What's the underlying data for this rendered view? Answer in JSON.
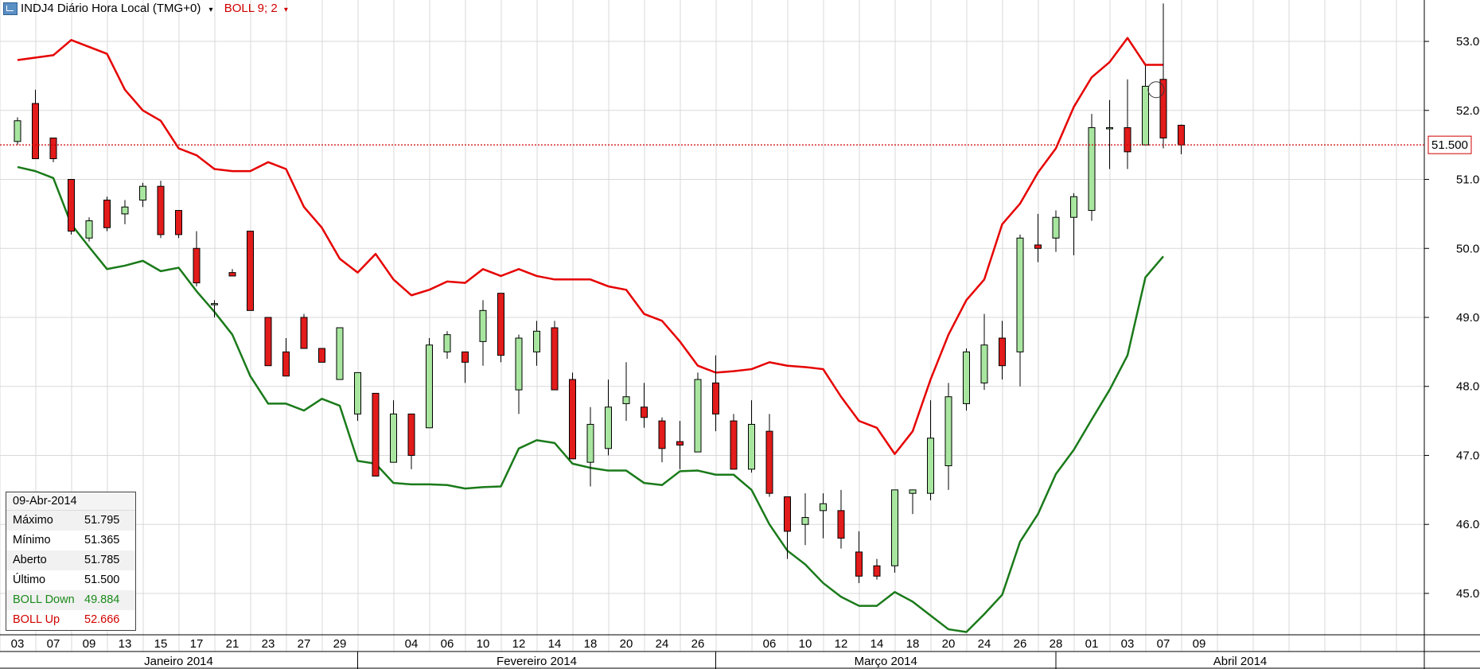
{
  "header": {
    "title": "INDJ4 Diário Hora Local (TMG+0)",
    "indicator": "BOLL 9; 2",
    "caret": "▾"
  },
  "price_marker": "51.500",
  "info_box": {
    "date": "09-Abr-2014",
    "rows": [
      {
        "label": "Máximo",
        "value": "51.795",
        "style": ""
      },
      {
        "label": "Mínimo",
        "value": "51.365",
        "style": ""
      },
      {
        "label": "Aberto",
        "value": "51.785",
        "style": ""
      },
      {
        "label": "Último",
        "value": "51.500",
        "style": ""
      },
      {
        "label": "BOLL Down",
        "value": "49.884",
        "style": "green"
      },
      {
        "label": "BOLL Up",
        "value": "52.666",
        "style": "red"
      }
    ]
  },
  "colors": {
    "up": "#a8e6a0",
    "down": "#e21b1b",
    "boll_up": "#e60000",
    "boll_down": "#1a7a1a",
    "grid": "#d9d9d9"
  },
  "chart_data": {
    "type": "candlestick",
    "y_range": [
      44.4,
      53.6
    ],
    "y_ticks": [
      "45.000",
      "46.000",
      "47.000",
      "48.000",
      "49.000",
      "50.000",
      "51.000",
      "52.000",
      "53.000"
    ],
    "last_price": 51.5,
    "x_labels": [
      "03",
      "07",
      "09",
      "13",
      "15",
      "17",
      "21",
      "23",
      "27",
      "29",
      "",
      "04",
      "06",
      "10",
      "12",
      "14",
      "18",
      "20",
      "24",
      "26",
      "",
      "06",
      "10",
      "12",
      "14",
      "18",
      "20",
      "24",
      "26",
      "28",
      "01",
      "03",
      "07",
      "09"
    ],
    "months": [
      {
        "name": "Janeiro 2014",
        "from": 0,
        "to": 10
      },
      {
        "name": "Fevereiro 2014",
        "from": 10,
        "to": 20
      },
      {
        "name": "Março 2014",
        "from": 20,
        "to": 29.5
      },
      {
        "name": "Abril 2014",
        "from": 29.5,
        "to": 41
      }
    ],
    "candles": [
      {
        "i": 0,
        "o": 51.55,
        "h": 51.9,
        "l": 51.5,
        "c": 51.85
      },
      {
        "i": 0.5,
        "o": 52.1,
        "h": 52.3,
        "l": 51.3,
        "c": 51.3
      },
      {
        "i": 1,
        "o": 51.6,
        "h": 51.6,
        "l": 51.25,
        "c": 51.3
      },
      {
        "i": 1.5,
        "o": 51.0,
        "h": 51.0,
        "l": 50.2,
        "c": 50.25
      },
      {
        "i": 2,
        "o": 50.15,
        "h": 50.45,
        "l": 50.1,
        "c": 50.4
      },
      {
        "i": 2.5,
        "o": 50.7,
        "h": 50.75,
        "l": 50.25,
        "c": 50.3
      },
      {
        "i": 3,
        "o": 50.5,
        "h": 50.7,
        "l": 50.35,
        "c": 50.6
      },
      {
        "i": 3.5,
        "o": 50.7,
        "h": 50.95,
        "l": 50.6,
        "c": 50.9
      },
      {
        "i": 4,
        "o": 50.9,
        "h": 50.98,
        "l": 50.15,
        "c": 50.2
      },
      {
        "i": 4.5,
        "o": 50.55,
        "h": 50.55,
        "l": 50.15,
        "c": 50.2
      },
      {
        "i": 5,
        "o": 50.0,
        "h": 50.25,
        "l": 49.45,
        "c": 49.5
      },
      {
        "i": 5.5,
        "o": 49.2,
        "h": 49.25,
        "l": 49.0,
        "c": 49.2
      },
      {
        "i": 6,
        "o": 49.65,
        "h": 49.7,
        "l": 49.6,
        "c": 49.6
      },
      {
        "i": 6.5,
        "o": 50.25,
        "h": 50.25,
        "l": 49.1,
        "c": 49.1
      },
      {
        "i": 7,
        "o": 49.0,
        "h": 49.0,
        "l": 48.3,
        "c": 48.3
      },
      {
        "i": 7.5,
        "o": 48.5,
        "h": 48.7,
        "l": 48.15,
        "c": 48.15
      },
      {
        "i": 8,
        "o": 49.0,
        "h": 49.05,
        "l": 48.55,
        "c": 48.55
      },
      {
        "i": 8.5,
        "o": 48.55,
        "h": 48.55,
        "l": 48.35,
        "c": 48.35
      },
      {
        "i": 9,
        "o": 48.1,
        "h": 48.85,
        "l": 48.1,
        "c": 48.85
      },
      {
        "i": 9.5,
        "o": 47.6,
        "h": 48.2,
        "l": 47.5,
        "c": 48.2
      },
      {
        "i": 10,
        "o": 47.9,
        "h": 47.9,
        "l": 46.7,
        "c": 46.7
      },
      {
        "i": 10.5,
        "o": 46.9,
        "h": 47.8,
        "l": 46.9,
        "c": 47.6
      },
      {
        "i": 11,
        "o": 47.6,
        "h": 47.6,
        "l": 46.8,
        "c": 47.0
      },
      {
        "i": 11.5,
        "o": 47.4,
        "h": 48.7,
        "l": 47.4,
        "c": 48.6
      },
      {
        "i": 12,
        "o": 48.5,
        "h": 48.8,
        "l": 48.4,
        "c": 48.75
      },
      {
        "i": 12.5,
        "o": 48.5,
        "h": 48.5,
        "l": 48.05,
        "c": 48.35
      },
      {
        "i": 13,
        "o": 48.65,
        "h": 49.25,
        "l": 48.3,
        "c": 49.1
      },
      {
        "i": 13.5,
        "o": 49.35,
        "h": 49.35,
        "l": 48.35,
        "c": 48.45
      },
      {
        "i": 14,
        "o": 47.95,
        "h": 48.75,
        "l": 47.6,
        "c": 48.7
      },
      {
        "i": 14.5,
        "o": 48.5,
        "h": 48.95,
        "l": 48.3,
        "c": 48.8
      },
      {
        "i": 15,
        "o": 48.85,
        "h": 48.95,
        "l": 47.95,
        "c": 47.95
      },
      {
        "i": 15.5,
        "o": 48.1,
        "h": 48.2,
        "l": 46.95,
        "c": 46.95
      },
      {
        "i": 16,
        "o": 46.9,
        "h": 47.7,
        "l": 46.55,
        "c": 47.45
      },
      {
        "i": 16.5,
        "o": 47.1,
        "h": 48.1,
        "l": 47.0,
        "c": 47.7
      },
      {
        "i": 17,
        "o": 47.75,
        "h": 48.35,
        "l": 47.5,
        "c": 47.85
      },
      {
        "i": 17.5,
        "o": 47.7,
        "h": 48.05,
        "l": 47.4,
        "c": 47.55
      },
      {
        "i": 18,
        "o": 47.5,
        "h": 47.55,
        "l": 46.9,
        "c": 47.1
      },
      {
        "i": 18.5,
        "o": 47.2,
        "h": 47.5,
        "l": 46.8,
        "c": 47.15
      },
      {
        "i": 19,
        "o": 47.05,
        "h": 48.2,
        "l": 47.05,
        "c": 48.1
      },
      {
        "i": 19.5,
        "o": 48.05,
        "h": 48.45,
        "l": 47.35,
        "c": 47.6
      },
      {
        "i": 20,
        "o": 47.5,
        "h": 47.6,
        "l": 46.8,
        "c": 46.8
      },
      {
        "i": 20.5,
        "o": 46.8,
        "h": 47.8,
        "l": 46.75,
        "c": 47.45
      },
      {
        "i": 21,
        "o": 47.35,
        "h": 47.6,
        "l": 46.4,
        "c": 46.45
      },
      {
        "i": 21.5,
        "o": 46.4,
        "h": 46.4,
        "l": 45.5,
        "c": 45.9
      },
      {
        "i": 22,
        "o": 46.0,
        "h": 46.45,
        "l": 45.7,
        "c": 46.1
      },
      {
        "i": 22.5,
        "o": 46.2,
        "h": 46.45,
        "l": 45.8,
        "c": 46.3
      },
      {
        "i": 23,
        "o": 46.2,
        "h": 46.5,
        "l": 45.65,
        "c": 45.8
      },
      {
        "i": 23.5,
        "o": 45.6,
        "h": 45.9,
        "l": 45.15,
        "c": 45.25
      },
      {
        "i": 24,
        "o": 45.4,
        "h": 45.5,
        "l": 45.2,
        "c": 45.25
      },
      {
        "i": 24.5,
        "o": 45.4,
        "h": 46.5,
        "l": 45.3,
        "c": 46.5
      },
      {
        "i": 25,
        "o": 46.45,
        "h": 46.5,
        "l": 46.15,
        "c": 46.5
      },
      {
        "i": 25.5,
        "o": 46.45,
        "h": 47.8,
        "l": 46.35,
        "c": 47.25
      },
      {
        "i": 26,
        "o": 46.85,
        "h": 48.05,
        "l": 46.5,
        "c": 47.85
      },
      {
        "i": 26.5,
        "o": 47.75,
        "h": 48.55,
        "l": 47.65,
        "c": 48.5
      },
      {
        "i": 27,
        "o": 48.05,
        "h": 49.05,
        "l": 47.95,
        "c": 48.6
      },
      {
        "i": 27.5,
        "o": 48.7,
        "h": 48.95,
        "l": 48.1,
        "c": 48.3
      },
      {
        "i": 28,
        "o": 48.5,
        "h": 50.2,
        "l": 48.0,
        "c": 50.15
      },
      {
        "i": 28.5,
        "o": 50.05,
        "h": 50.5,
        "l": 49.8,
        "c": 50.0
      },
      {
        "i": 29,
        "o": 50.15,
        "h": 50.55,
        "l": 49.95,
        "c": 50.45
      },
      {
        "i": 29.5,
        "o": 50.45,
        "h": 50.8,
        "l": 49.9,
        "c": 50.75
      },
      {
        "i": 30,
        "o": 50.55,
        "h": 51.95,
        "l": 50.4,
        "c": 51.75
      },
      {
        "i": 30.5,
        "o": 51.75,
        "h": 52.15,
        "l": 51.15,
        "c": 51.75
      },
      {
        "i": 31,
        "o": 51.75,
        "h": 52.45,
        "l": 51.15,
        "c": 51.4
      },
      {
        "i": 31.5,
        "o": 51.5,
        "h": 52.65,
        "l": 51.5,
        "c": 52.35
      },
      {
        "i": 32,
        "o": 52.45,
        "h": 53.55,
        "l": 51.45,
        "c": 51.6
      },
      {
        "i": 32.5,
        "o": 51.785,
        "h": 51.795,
        "l": 51.365,
        "c": 51.5
      }
    ],
    "boll_up": [
      [
        0,
        52.73
      ],
      [
        1,
        52.8
      ],
      [
        1.5,
        53.02
      ],
      [
        2.5,
        52.82
      ],
      [
        3,
        52.3
      ],
      [
        3.5,
        52.0
      ],
      [
        4,
        51.85
      ],
      [
        4.5,
        51.45
      ],
      [
        5,
        51.35
      ],
      [
        5.5,
        51.15
      ],
      [
        6,
        51.12
      ],
      [
        6.5,
        51.12
      ],
      [
        7,
        51.25
      ],
      [
        7.5,
        51.15
      ],
      [
        8,
        50.6
      ],
      [
        8.5,
        50.3
      ],
      [
        9,
        49.85
      ],
      [
        9.5,
        49.65
      ],
      [
        10,
        49.92
      ],
      [
        10.5,
        49.55
      ],
      [
        11,
        49.32
      ],
      [
        11.5,
        49.4
      ],
      [
        12,
        49.52
      ],
      [
        12.5,
        49.5
      ],
      [
        13,
        49.7
      ],
      [
        13.5,
        49.6
      ],
      [
        14,
        49.7
      ],
      [
        14.5,
        49.6
      ],
      [
        15,
        49.55
      ],
      [
        15.5,
        49.55
      ],
      [
        16,
        49.55
      ],
      [
        16.5,
        49.45
      ],
      [
        17,
        49.4
      ],
      [
        17.5,
        49.05
      ],
      [
        18,
        48.95
      ],
      [
        18.5,
        48.65
      ],
      [
        19,
        48.3
      ],
      [
        19.5,
        48.2
      ],
      [
        20,
        48.22
      ],
      [
        20.5,
        48.25
      ],
      [
        21,
        48.35
      ],
      [
        21.5,
        48.3
      ],
      [
        22,
        48.28
      ],
      [
        22.5,
        48.25
      ],
      [
        23,
        47.85
      ],
      [
        23.5,
        47.5
      ],
      [
        24,
        47.4
      ],
      [
        24.5,
        47.02
      ],
      [
        25,
        47.35
      ],
      [
        25.5,
        48.1
      ],
      [
        26,
        48.75
      ],
      [
        26.5,
        49.25
      ],
      [
        27,
        49.55
      ],
      [
        27.5,
        50.35
      ],
      [
        28,
        50.65
      ],
      [
        28.5,
        51.1
      ],
      [
        29,
        51.45
      ],
      [
        29.5,
        52.05
      ],
      [
        30,
        52.48
      ],
      [
        30.5,
        52.7
      ],
      [
        31,
        53.05
      ],
      [
        31.5,
        52.66
      ],
      [
        32,
        52.66
      ]
    ],
    "boll_down": [
      [
        0,
        51.18
      ],
      [
        0.5,
        51.12
      ],
      [
        1,
        51.02
      ],
      [
        1.5,
        50.35
      ],
      [
        2,
        50.02
      ],
      [
        2.5,
        49.7
      ],
      [
        3,
        49.75
      ],
      [
        3.5,
        49.82
      ],
      [
        4,
        49.67
      ],
      [
        4.5,
        49.72
      ],
      [
        5,
        49.38
      ],
      [
        5.5,
        49.08
      ],
      [
        6,
        48.75
      ],
      [
        6.5,
        48.15
      ],
      [
        7,
        47.75
      ],
      [
        7.5,
        47.75
      ],
      [
        8,
        47.65
      ],
      [
        8.5,
        47.82
      ],
      [
        9,
        47.72
      ],
      [
        9.5,
        46.92
      ],
      [
        10,
        46.88
      ],
      [
        10.5,
        46.6
      ],
      [
        11,
        46.58
      ],
      [
        11.5,
        46.58
      ],
      [
        12,
        46.57
      ],
      [
        12.5,
        46.52
      ],
      [
        13,
        46.54
      ],
      [
        13.5,
        46.55
      ],
      [
        14,
        47.1
      ],
      [
        14.5,
        47.22
      ],
      [
        15,
        47.18
      ],
      [
        15.5,
        46.88
      ],
      [
        16,
        46.82
      ],
      [
        16.5,
        46.78
      ],
      [
        17,
        46.78
      ],
      [
        17.5,
        46.6
      ],
      [
        18,
        46.57
      ],
      [
        18.5,
        46.77
      ],
      [
        19,
        46.78
      ],
      [
        19.5,
        46.72
      ],
      [
        20,
        46.72
      ],
      [
        20.5,
        46.5
      ],
      [
        21,
        46.0
      ],
      [
        21.5,
        45.62
      ],
      [
        22,
        45.42
      ],
      [
        22.5,
        45.15
      ],
      [
        23,
        44.95
      ],
      [
        23.5,
        44.82
      ],
      [
        24,
        44.82
      ],
      [
        24.5,
        45.02
      ],
      [
        25,
        44.88
      ],
      [
        25.5,
        44.68
      ],
      [
        26,
        44.48
      ],
      [
        26.5,
        44.44
      ],
      [
        27,
        44.7
      ],
      [
        27.5,
        44.98
      ],
      [
        28,
        45.75
      ],
      [
        28.5,
        46.15
      ],
      [
        29,
        46.73
      ],
      [
        29.5,
        47.08
      ],
      [
        30,
        47.52
      ],
      [
        30.5,
        47.95
      ],
      [
        31,
        48.45
      ],
      [
        31.5,
        49.58
      ],
      [
        32,
        49.884
      ]
    ]
  }
}
